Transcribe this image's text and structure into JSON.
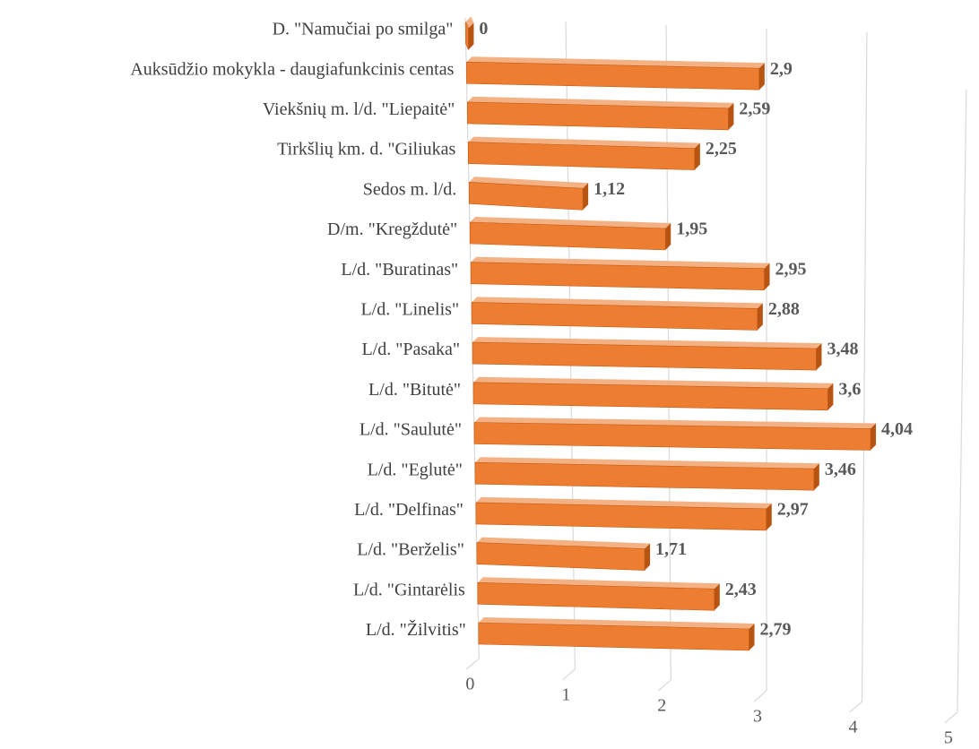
{
  "chart_data": {
    "type": "bar3d",
    "categories": [
      "D. \"Namučiai po smilga\"",
      "Auksūdžio mokykla - daugiafunkcinis centas",
      "Viekšnių m. l/d. \"Liepaitė\"",
      "Tirkšlių km. d. \"Giliukas",
      "Sedos m. l/d.",
      "D/m. \"Kregždutė\"",
      "L/d. \"Buratinas\"",
      "L/d. \"Linelis\"",
      "L/d. \"Pasaka\"",
      "L/d. \"Bitutė\"",
      "L/d. \"Saulutė\"",
      "L/d. \"Eglutė\"",
      "L/d. \"Delfinas\"",
      "L/d. \"Berželis\"",
      "L/d. \"Gintarėlis",
      "L/d. \"Žilvitis\""
    ],
    "values": [
      0,
      2.9,
      2.59,
      2.25,
      1.12,
      1.95,
      2.95,
      2.88,
      3.48,
      3.6,
      4.04,
      3.46,
      2.97,
      1.71,
      2.43,
      2.79
    ],
    "value_labels": [
      "0",
      "2,9",
      "2,59",
      "2,25",
      "1,12",
      "1,95",
      "2,95",
      "2,88",
      "3,48",
      "3,6",
      "4,04",
      "3,46",
      "2,97",
      "1,71",
      "2,43",
      "2,79"
    ],
    "color": "#ed7d31",
    "xlim": [
      0,
      5
    ],
    "xticks": [
      0,
      1,
      2,
      3,
      4,
      5
    ],
    "grid": true
  }
}
